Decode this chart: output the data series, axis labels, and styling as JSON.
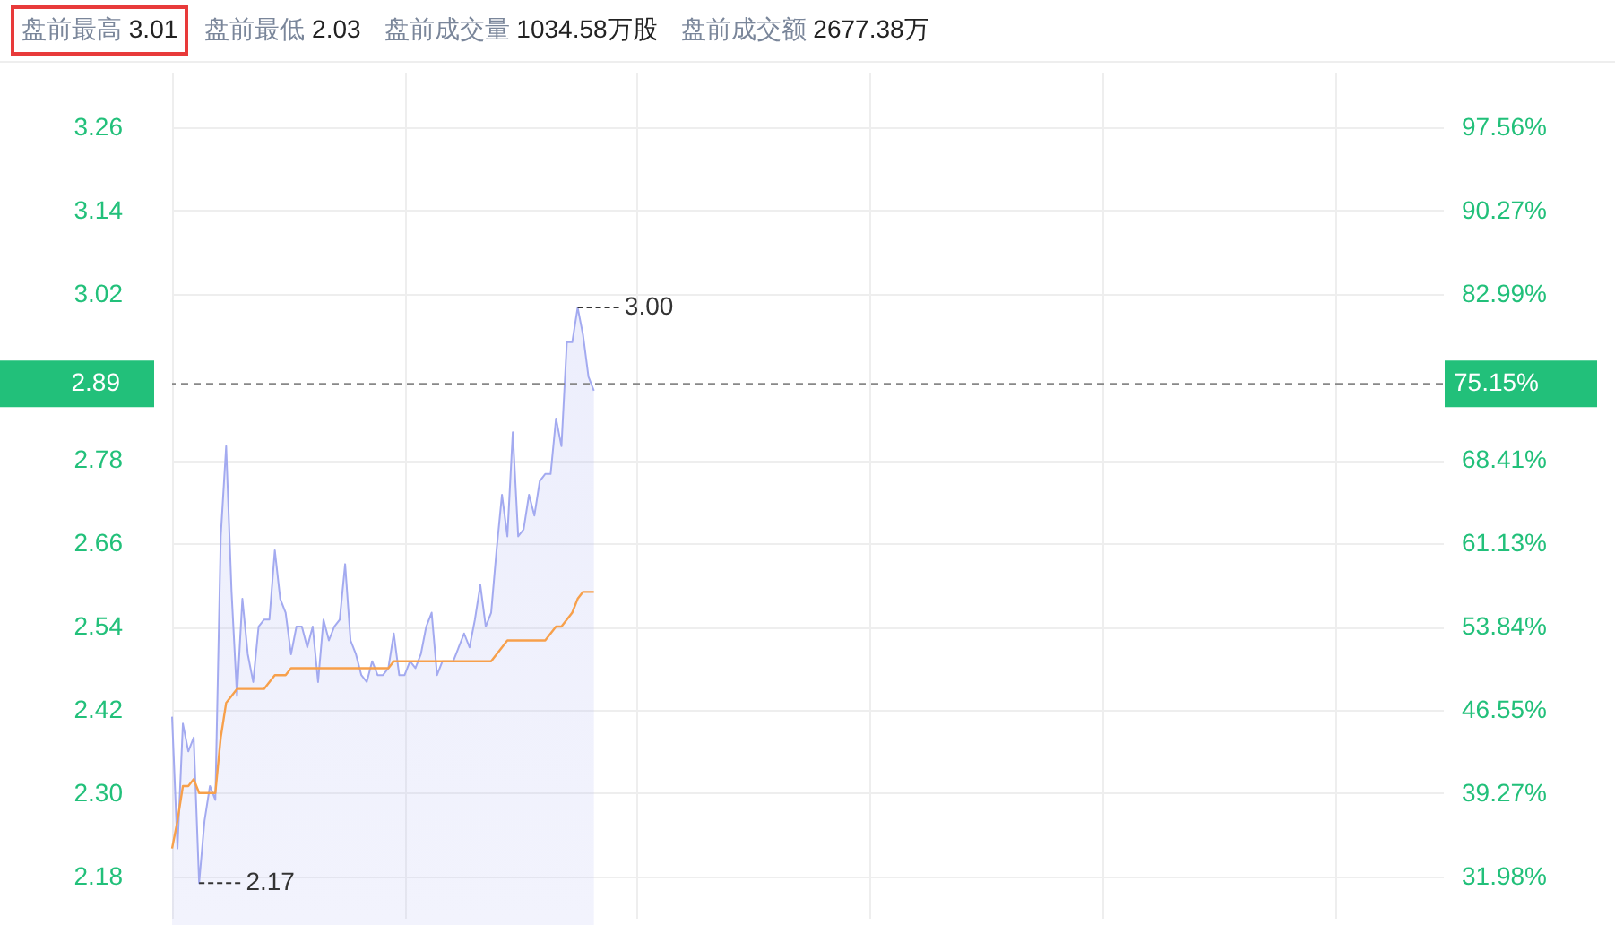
{
  "chart_data": {
    "type": "line",
    "annotations": [
      "盘前最高 3.01",
      "盘前最低 2.03",
      "盘前成交量 1034.58万股",
      "盘前成交额 2677.38万",
      "3.00",
      "2.17",
      "75.15%"
    ],
    "categories": [
      null,
      null,
      null,
      null,
      null,
      null,
      null,
      null,
      null,
      null,
      null,
      null,
      null,
      null,
      null,
      null,
      null,
      null,
      null,
      null,
      null,
      null,
      null,
      null,
      null,
      null,
      null,
      null,
      null,
      null,
      null,
      null,
      null,
      null,
      null,
      null,
      null,
      null,
      null,
      null,
      null,
      null,
      null,
      null,
      null,
      null,
      null,
      null,
      null,
      null,
      null,
      null,
      null,
      null,
      null,
      null,
      null,
      null,
      null,
      null,
      null,
      null,
      null,
      null,
      null,
      null,
      null,
      null,
      null,
      null,
      null,
      null,
      null,
      null,
      null,
      null,
      null,
      null,
      null,
      null,
      null,
      null,
      null,
      null,
      null,
      null,
      null,
      null,
      null,
      null,
      null,
      null,
      null,
      null,
      null,
      null,
      null,
      null,
      null,
      null,
      null,
      null,
      null,
      null,
      null,
      null,
      null,
      null,
      null,
      null,
      null,
      null,
      null,
      null,
      null,
      null,
      null,
      null,
      null,
      null,
      null,
      null,
      null,
      null,
      null,
      null,
      null,
      null,
      null,
      null,
      null,
      null,
      null,
      null,
      null,
      null,
      null,
      null,
      null,
      null,
      null,
      null,
      null,
      null,
      null,
      null,
      null,
      null,
      null,
      null,
      null,
      null,
      null,
      null,
      null,
      null,
      null,
      null,
      null,
      null,
      null,
      null,
      null,
      null,
      null,
      null,
      null,
      null,
      null,
      null,
      null,
      null,
      null,
      null,
      null,
      null,
      null,
      null,
      null,
      null,
      null,
      null,
      null,
      null,
      null,
      null,
      null,
      null,
      null,
      null,
      null,
      null,
      null,
      null,
      null,
      null,
      null,
      null,
      null,
      null,
      null,
      null,
      null,
      null,
      null,
      null,
      null,
      null,
      null,
      null,
      null,
      null,
      null,
      null,
      null,
      null,
      null,
      null,
      null,
      null,
      null,
      null,
      null,
      null,
      null,
      null,
      null,
      null,
      null,
      null,
      null,
      null,
      null,
      null,
      null,
      null
    ],
    "series": [
      {
        "type": "area",
        "color": "#a3aaf0",
        "values": [
          2.41,
          2.22,
          2.4,
          2.36,
          2.38,
          2.17,
          2.26,
          2.31,
          2.29,
          2.67,
          2.8,
          2.59,
          2.44,
          2.58,
          2.5,
          2.46,
          2.54,
          2.55,
          2.55,
          2.65,
          2.58,
          2.56,
          2.5,
          2.54,
          2.54,
          2.51,
          2.54,
          2.46,
          2.55,
          2.52,
          2.54,
          2.55,
          2.63,
          2.52,
          2.5,
          2.47,
          2.46,
          2.49,
          2.47,
          2.47,
          2.48,
          2.53,
          2.47,
          2.47,
          2.49,
          2.48,
          2.5,
          2.54,
          2.56,
          2.47,
          2.49,
          2.49,
          2.49,
          2.51,
          2.53,
          2.51,
          2.55,
          2.6,
          2.54,
          2.56,
          2.65,
          2.73,
          2.67,
          2.82,
          2.67,
          2.68,
          2.73,
          2.7,
          2.75,
          2.76,
          2.76,
          2.84,
          2.8,
          2.95,
          2.95,
          3.0,
          2.96,
          2.9,
          2.88,
          null,
          null,
          null,
          null,
          null,
          null,
          null,
          null,
          null,
          null,
          null,
          null,
          null,
          null,
          null,
          null,
          null,
          null,
          null,
          null,
          null,
          null,
          null,
          null,
          null,
          null,
          null,
          null,
          null,
          null,
          null,
          null,
          null,
          null,
          null,
          null,
          null,
          null,
          null,
          null,
          null,
          null,
          null,
          null,
          null,
          null,
          null,
          null,
          null,
          null,
          null,
          null,
          null,
          null,
          null,
          null,
          null,
          null,
          null,
          null,
          null,
          null,
          null,
          null,
          null,
          null,
          null,
          null,
          null,
          null,
          null,
          null,
          null,
          null,
          null,
          null,
          null,
          null,
          null,
          null,
          null,
          null,
          null,
          null,
          null,
          null,
          null,
          null,
          null,
          null,
          null,
          null,
          null,
          null,
          null,
          null,
          null,
          null,
          null,
          null,
          null,
          null,
          null,
          null,
          null,
          null,
          null,
          null,
          null,
          null,
          null,
          null,
          null,
          null,
          null,
          null,
          null,
          null,
          null,
          null,
          null,
          null,
          null,
          null,
          null,
          null,
          null,
          null,
          null,
          null,
          null,
          null,
          null,
          null,
          null,
          null,
          null,
          null,
          null,
          null,
          null,
          null,
          null,
          null,
          null,
          null,
          null,
          null,
          null,
          null,
          null,
          null,
          null,
          null,
          null,
          null,
          null
        ]
      },
      {
        "type": "line",
        "color": "#f7a04b",
        "values": [
          2.22,
          2.26,
          2.31,
          2.31,
          2.32,
          2.3,
          2.3,
          2.3,
          2.3,
          2.38,
          2.43,
          2.44,
          2.45,
          2.45,
          2.45,
          2.45,
          2.45,
          2.45,
          2.46,
          2.47,
          2.47,
          2.47,
          2.48,
          2.48,
          2.48,
          2.48,
          2.48,
          2.48,
          2.48,
          2.48,
          2.48,
          2.48,
          2.48,
          2.48,
          2.48,
          2.48,
          2.48,
          2.48,
          2.48,
          2.48,
          2.48,
          2.49,
          2.49,
          2.49,
          2.49,
          2.49,
          2.49,
          2.49,
          2.49,
          2.49,
          2.49,
          2.49,
          2.49,
          2.49,
          2.49,
          2.49,
          2.49,
          2.49,
          2.49,
          2.49,
          2.5,
          2.51,
          2.52,
          2.52,
          2.52,
          2.52,
          2.52,
          2.52,
          2.52,
          2.52,
          2.53,
          2.54,
          2.54,
          2.55,
          2.56,
          2.58,
          2.59,
          2.59,
          2.59,
          null,
          null,
          null,
          null,
          null,
          null,
          null,
          null,
          null,
          null,
          null,
          null,
          null,
          null,
          null,
          null,
          null,
          null,
          null,
          null,
          null,
          null,
          null,
          null,
          null,
          null,
          null,
          null,
          null,
          null,
          null,
          null,
          null,
          null,
          null,
          null,
          null,
          null,
          null,
          null,
          null,
          null,
          null,
          null,
          null,
          null,
          null,
          null,
          null,
          null,
          null,
          null,
          null,
          null,
          null,
          null,
          null,
          null,
          null,
          null,
          null,
          null,
          null,
          null,
          null,
          null,
          null,
          null,
          null,
          null,
          null,
          null,
          null,
          null,
          null,
          null,
          null,
          null,
          null,
          null,
          null,
          null,
          null,
          null,
          null,
          null,
          null,
          null,
          null,
          null,
          null,
          null,
          null,
          null,
          null,
          null,
          null,
          null,
          null,
          null,
          null,
          null,
          null,
          null,
          null,
          null,
          null,
          null,
          null,
          null,
          null,
          null,
          null,
          null,
          null,
          null,
          null,
          null,
          null,
          null,
          null,
          null,
          null,
          null,
          null,
          null,
          null,
          null,
          null,
          null,
          null,
          null,
          null,
          null,
          null,
          null,
          null,
          null,
          null,
          null,
          null,
          null,
          null,
          null,
          null,
          null,
          null,
          null,
          null,
          null,
          null,
          null,
          null,
          null,
          null,
          null,
          null
        ]
      }
    ],
    "ylim": [
      2.12,
      3.34
    ],
    "yticks": [
      2.18,
      {
        "value": 2.3,
        "label": "2.30"
      },
      2.42,
      2.54,
      2.66,
      2.78,
      3.02,
      3.14,
      3.26
    ],
    "y2lim": [
      28.34,
      102.42
    ],
    "y2ticks": [
      {
        "value": 31.98,
        "label": "31.98%"
      },
      {
        "value": 39.27,
        "label": "39.27%"
      },
      {
        "value": 46.55,
        "label": "46.55%"
      },
      {
        "value": 53.84,
        "label": "53.84%"
      },
      {
        "value": 61.13,
        "label": "61.13%"
      },
      {
        "value": 68.41,
        "label": "68.41%"
      },
      {
        "value": 82.99,
        "label": "82.99%"
      },
      {
        "value": 90.27,
        "label": "90.27%"
      },
      {
        "value": 97.56,
        "label": "97.56%"
      }
    ],
    "ref_lines": [
      {
        "axis": "y",
        "value": 2.89,
        "label": "2.89",
        "color": "#888888",
        "line_style": "dashed"
      }
    ],
    "grid": true
  }
}
